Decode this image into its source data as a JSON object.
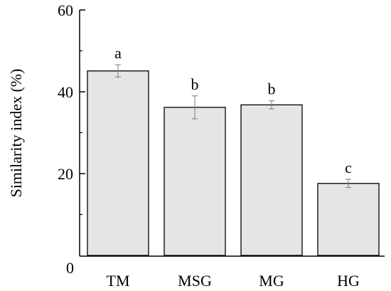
{
  "chart_data": {
    "type": "bar",
    "categories": [
      "TM",
      "MSG",
      "MG",
      "HG"
    ],
    "values": [
      45.1,
      36.2,
      36.8,
      17.6
    ],
    "errors": [
      1.5,
      2.8,
      1.0,
      1.0
    ],
    "annotations": [
      "a",
      "b",
      "b",
      "c"
    ],
    "ylabel": "Similarity index (%)",
    "ylim": [
      0,
      60
    ],
    "yticks": [
      "0",
      "20",
      "40",
      "60"
    ],
    "grid": false,
    "legend": "none",
    "bar_color": "#e5e5e5",
    "edge_color": "#000000",
    "error_color": "#7a7a7a"
  }
}
